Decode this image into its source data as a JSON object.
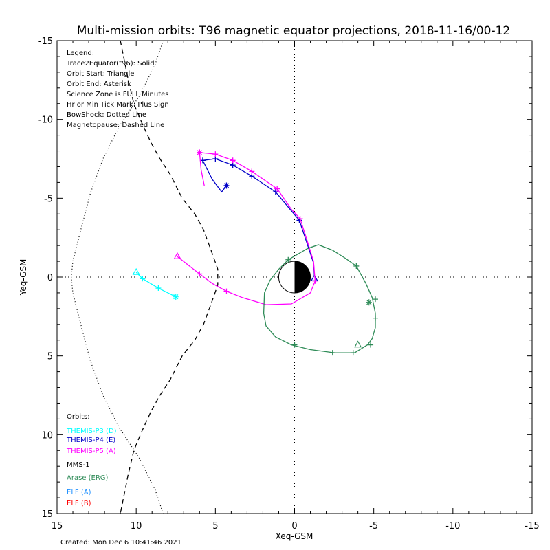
{
  "chart_data": {
    "type": "line",
    "title": "Multi-mission orbits: T96 magnetic equator projections, 2018-11-16/00-12",
    "xlabel": "Xeq-GSM",
    "ylabel": "Yeq-GSM",
    "xlim": [
      15,
      -15
    ],
    "ylim": [
      -15,
      15
    ],
    "x_ticks": [
      "15",
      "10",
      "5",
      "0",
      "-5",
      "-10",
      "-15"
    ],
    "y_ticks": [
      "-15",
      "-10",
      "-5",
      "0",
      "5",
      "10",
      "15"
    ],
    "x_tick_values": [
      15,
      10,
      5,
      0,
      -5,
      -10,
      -15
    ],
    "y_tick_values": [
      -15,
      -10,
      -5,
      0,
      5,
      10,
      15
    ],
    "legend_lines": [
      "Legend:",
      "Trace2Equator(t96): Solid",
      "Orbit Start: Triangle",
      "Orbit End: Asterisk",
      "Science Zone is FULL Minutes",
      "Hr or Min Tick Mark: Plus Sign",
      "BowShock: Dotted Line",
      "Magnetopause: Dashed Line"
    ],
    "orbits_title": "Orbits:",
    "orbit_labels": [
      {
        "label": "THEMIS-P3 (D)",
        "color": "#00ffff"
      },
      {
        "label": "THEMIS-P4 (E)",
        "color": "#0000c8"
      },
      {
        "label": "THEMIS-P5 (A)",
        "color": "#ff00ff"
      },
      {
        "label": "MMS-1",
        "color": "#000000"
      },
      {
        "label": "Arase (ERG)",
        "color": "#2e8b57"
      },
      {
        "label": "ELF (A)",
        "color": "#1e90ff"
      },
      {
        "label": "ELF (B)",
        "color": "#ff0000"
      }
    ],
    "created": "Created: Mon Dec  6 10:41:46 2021",
    "magnetopause": [
      [
        11.0,
        -15.0
      ],
      [
        10.8,
        -14.0
      ],
      [
        10.5,
        -12.5
      ],
      [
        10.15,
        -11.0
      ],
      [
        9.65,
        -9.8
      ],
      [
        9.05,
        -8.5
      ],
      [
        8.5,
        -7.5
      ],
      [
        7.85,
        -6.5
      ],
      [
        7.1,
        -5.0
      ],
      [
        6.3,
        -4.0
      ],
      [
        5.75,
        -3.0
      ],
      [
        5.2,
        -1.5
      ],
      [
        4.85,
        -0.5
      ],
      [
        4.85,
        0.5
      ],
      [
        5.2,
        1.5
      ],
      [
        5.75,
        3.0
      ],
      [
        6.3,
        4.0
      ],
      [
        7.1,
        5.0
      ],
      [
        7.85,
        6.5
      ],
      [
        8.5,
        7.5
      ],
      [
        9.05,
        8.5
      ],
      [
        9.65,
        9.8
      ],
      [
        10.15,
        11.0
      ],
      [
        10.5,
        12.5
      ],
      [
        10.8,
        14.0
      ],
      [
        11.0,
        15.0
      ]
    ],
    "bowshock": [
      [
        8.3,
        -15.0
      ],
      [
        8.8,
        -13.5
      ],
      [
        9.8,
        -11.5
      ],
      [
        11.1,
        -9.5
      ],
      [
        12.1,
        -7.5
      ],
      [
        12.9,
        -5.3
      ],
      [
        13.5,
        -3.0
      ],
      [
        14.0,
        -1.0
      ],
      [
        14.1,
        0.0
      ],
      [
        14.0,
        1.0
      ],
      [
        13.5,
        3.0
      ],
      [
        12.9,
        5.3
      ],
      [
        12.1,
        7.5
      ],
      [
        11.1,
        9.5
      ],
      [
        9.8,
        11.5
      ],
      [
        8.8,
        13.5
      ],
      [
        8.3,
        15.0
      ]
    ],
    "series": [
      {
        "name": "THEMIS-P3 (D)",
        "color": "#00ffff",
        "points": [
          [
            10.0,
            -0.3
          ],
          [
            9.6,
            0.1
          ],
          [
            8.6,
            0.7
          ],
          [
            7.5,
            1.25
          ]
        ],
        "ticks": [
          [
            9.6,
            0.1
          ],
          [
            8.6,
            0.7
          ]
        ],
        "start": [
          10.0,
          -0.3
        ],
        "end": [
          7.5,
          1.25
        ]
      },
      {
        "name": "THEMIS-P4 (E)",
        "color": "#0000c8",
        "points": [
          [
            4.3,
            -5.8
          ],
          [
            4.6,
            -5.4
          ],
          [
            5.2,
            -6.2
          ],
          [
            5.8,
            -7.4
          ],
          [
            5.0,
            -7.5
          ],
          [
            3.9,
            -7.1
          ],
          [
            2.7,
            -6.4
          ],
          [
            1.2,
            -5.4
          ],
          [
            0.2,
            -4.2
          ],
          [
            -0.3,
            -3.6
          ],
          [
            -0.8,
            -2.1
          ],
          [
            -1.2,
            -0.9
          ],
          [
            -1.25,
            -0.1
          ]
        ],
        "ticks": [
          [
            4.3,
            -5.8
          ],
          [
            5.8,
            -7.4
          ],
          [
            5.0,
            -7.5
          ],
          [
            3.9,
            -7.1
          ],
          [
            2.7,
            -6.4
          ],
          [
            1.2,
            -5.4
          ],
          [
            -0.3,
            -3.6
          ]
        ],
        "start": [
          -1.25,
          0.1
        ],
        "end": [
          4.3,
          -5.8
        ]
      },
      {
        "name": "THEMIS-P5 (A)",
        "color": "#ff00ff",
        "points": [
          [
            5.7,
            -5.8
          ],
          [
            5.9,
            -6.8
          ],
          [
            6.0,
            -7.9
          ],
          [
            5.0,
            -7.8
          ],
          [
            3.9,
            -7.4
          ],
          [
            2.7,
            -6.7
          ],
          [
            1.1,
            -5.6
          ],
          [
            0.2,
            -4.3
          ],
          [
            -0.35,
            -3.7
          ],
          [
            -0.8,
            -2.3
          ],
          [
            -1.2,
            -1.0
          ],
          [
            -1.3,
            0.25
          ],
          [
            -1.0,
            1.0
          ],
          [
            0.2,
            1.7
          ],
          [
            1.8,
            1.75
          ],
          [
            3.3,
            1.3
          ],
          [
            4.3,
            0.9
          ],
          [
            5.2,
            0.4
          ],
          [
            6.0,
            -0.2
          ],
          [
            7.4,
            -1.3
          ]
        ],
        "ticks": [
          [
            6.0,
            -7.9
          ],
          [
            5.0,
            -7.8
          ],
          [
            3.9,
            -7.4
          ],
          [
            2.7,
            -6.7
          ],
          [
            1.1,
            -5.6
          ],
          [
            -0.35,
            -3.7
          ],
          [
            -1.3,
            0.25
          ],
          [
            4.3,
            0.9
          ],
          [
            6.0,
            -0.2
          ]
        ],
        "start": [
          7.4,
          -1.3
        ],
        "end": [
          6.0,
          -7.9
        ]
      },
      {
        "name": "Arase (ERG)",
        "color": "#2e8b57",
        "points": [
          [
            0.4,
            -1.1
          ],
          [
            -0.8,
            -1.8
          ],
          [
            -1.5,
            -2.05
          ],
          [
            -2.4,
            -1.7
          ],
          [
            -3.2,
            -1.2
          ],
          [
            -3.9,
            -0.7
          ],
          [
            -4.5,
            0.4
          ],
          [
            -4.9,
            1.3
          ],
          [
            -5.1,
            2.3
          ],
          [
            -5.1,
            3.2
          ],
          [
            -4.9,
            3.9
          ],
          [
            -4.6,
            4.3
          ],
          [
            -3.8,
            4.8
          ],
          [
            -2.5,
            4.8
          ],
          [
            -1.0,
            4.6
          ],
          [
            0.2,
            4.3
          ],
          [
            1.2,
            3.8
          ],
          [
            1.8,
            3.1
          ],
          [
            1.95,
            2.3
          ],
          [
            1.9,
            1.0
          ],
          [
            1.55,
            0.2
          ],
          [
            1.0,
            -0.5
          ],
          [
            0.4,
            -1.1
          ]
        ],
        "ticks": [
          [
            0.4,
            -1.1
          ],
          [
            -3.9,
            -0.7
          ],
          [
            -5.1,
            1.4
          ],
          [
            -5.1,
            2.6
          ],
          [
            -4.8,
            4.3
          ],
          [
            -3.7,
            4.8
          ],
          [
            -2.4,
            4.8
          ],
          [
            0.0,
            4.3
          ]
        ],
        "start": [
          -4.0,
          4.3
        ],
        "end": [
          -4.7,
          1.6
        ]
      }
    ]
  }
}
